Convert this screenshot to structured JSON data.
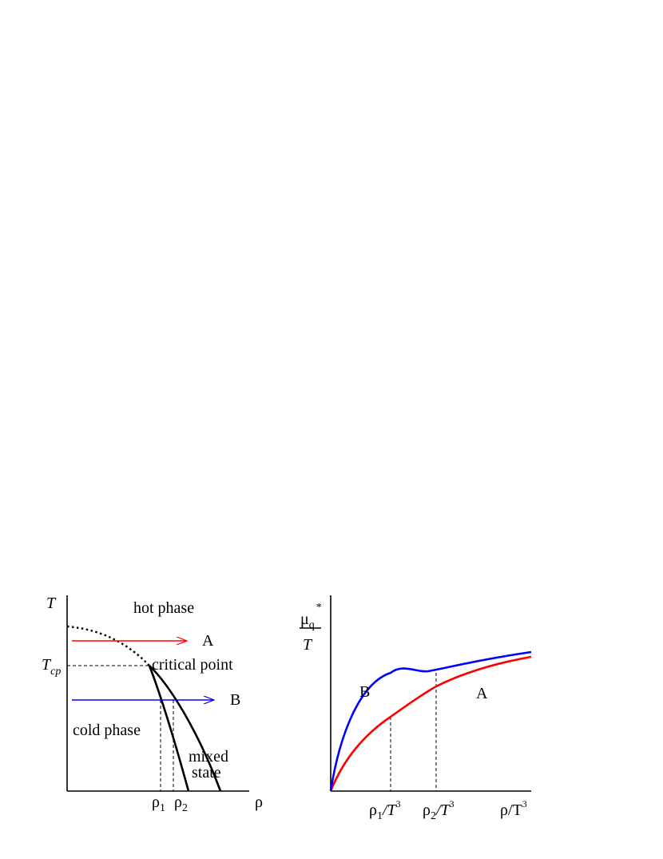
{
  "left_panel": {
    "axis_y_label": "T",
    "axis_x_label": "ρ",
    "tcp_label_main": "T",
    "tcp_label_sub": "cp",
    "region_hot": "hot phase",
    "region_cold": "cold phase",
    "critical_point_label": "critical point",
    "mixed_line1": "mixed",
    "mixed_line2": "state",
    "rho1_main": "ρ",
    "rho1_sub": "1",
    "rho2_main": "ρ",
    "rho2_sub": "2",
    "arrow_A_label": "A",
    "arrow_B_label": "B",
    "colors": {
      "A": "#ff0000",
      "B": "#0000ff"
    }
  },
  "right_panel": {
    "ylabel_numerator_main": "μ",
    "ylabel_numerator_sub": "q",
    "ylabel_numerator_sup": "*",
    "ylabel_denominator": "T",
    "tick1_main": "ρ",
    "tick1_sub": "1",
    "tick1_rest": "/T",
    "tick1_sup": "3",
    "tick2_main": "ρ",
    "tick2_sub": "2",
    "tick2_rest": "/T",
    "tick2_sup": "3",
    "xlabel_main": "ρ/T",
    "xlabel_sup": "3",
    "curve_B_label": "B",
    "curve_A_label": "A",
    "colors": {
      "A": "#ff0000",
      "B": "#0000ff"
    }
  }
}
